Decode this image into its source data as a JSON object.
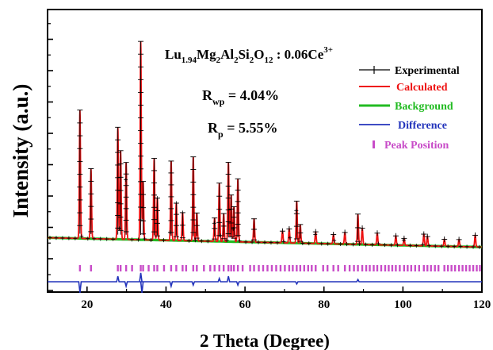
{
  "chart_data": {
    "type": "line",
    "title": "",
    "xlabel": "2 Theta (Degree)",
    "ylabel": "Intensity (a.u.)",
    "xlim": [
      10,
      120
    ],
    "ylim": [
      0,
      100
    ],
    "x_ticks": [
      20,
      40,
      60,
      80,
      100,
      120
    ],
    "y_ticks_labeled": false,
    "grid": false,
    "legend_position": "top-right",
    "annotations": {
      "formula": {
        "base1": "Lu",
        "sub1": "1.94",
        "base2": "Mg",
        "sub2": "2",
        "base3": "Al",
        "sub3": "2",
        "base4": "Si",
        "sub4": "2",
        "base5": "O",
        "sub5": "12",
        "mid": " : 0.06Ce",
        "sup": "3+"
      },
      "rwp": {
        "base": "R",
        "sub": "wp",
        "rest": " = 4.04%"
      },
      "rp": {
        "base": "R",
        "sub": "p",
        "rest": " = 5.55%"
      }
    },
    "series": [
      {
        "name": "Experimental",
        "color": "#000000",
        "marker": "plus"
      },
      {
        "name": "Calculated",
        "color": "#ee1111"
      },
      {
        "name": "Background",
        "color": "#22bb22"
      },
      {
        "name": "Difference",
        "color": "#2233bb"
      },
      {
        "name": "Peak Position",
        "color": "#c84cc8",
        "marker": "tick"
      }
    ],
    "background": {
      "start": 9,
      "end": 5
    },
    "peaks": [
      {
        "x": 18.2,
        "h": 55
      },
      {
        "x": 21.0,
        "h": 30
      },
      {
        "x": 27.8,
        "h": 48
      },
      {
        "x": 28.5,
        "h": 38
      },
      {
        "x": 29.9,
        "h": 33
      },
      {
        "x": 33.6,
        "h": 85
      },
      {
        "x": 34.2,
        "h": 25
      },
      {
        "x": 37.0,
        "h": 35
      },
      {
        "x": 37.8,
        "h": 18
      },
      {
        "x": 41.3,
        "h": 34
      },
      {
        "x": 42.6,
        "h": 16
      },
      {
        "x": 44.2,
        "h": 12
      },
      {
        "x": 46.9,
        "h": 36
      },
      {
        "x": 47.8,
        "h": 12
      },
      {
        "x": 52.3,
        "h": 10
      },
      {
        "x": 53.5,
        "h": 25
      },
      {
        "x": 54.6,
        "h": 12
      },
      {
        "x": 55.8,
        "h": 34
      },
      {
        "x": 56.5,
        "h": 20
      },
      {
        "x": 57.2,
        "h": 15
      },
      {
        "x": 58.2,
        "h": 27
      },
      {
        "x": 62.3,
        "h": 10
      },
      {
        "x": 69.5,
        "h": 5
      },
      {
        "x": 71.2,
        "h": 6
      },
      {
        "x": 73.1,
        "h": 18
      },
      {
        "x": 74.0,
        "h": 8
      },
      {
        "x": 77.9,
        "h": 5
      },
      {
        "x": 82.4,
        "h": 4
      },
      {
        "x": 85.3,
        "h": 5
      },
      {
        "x": 88.6,
        "h": 13
      },
      {
        "x": 89.7,
        "h": 7
      },
      {
        "x": 93.5,
        "h": 5
      },
      {
        "x": 98.2,
        "h": 4
      },
      {
        "x": 100.3,
        "h": 3
      },
      {
        "x": 105.3,
        "h": 5
      },
      {
        "x": 106.2,
        "h": 4
      },
      {
        "x": 110.5,
        "h": 3
      },
      {
        "x": 114.2,
        "h": 3
      },
      {
        "x": 118.3,
        "h": 5
      }
    ],
    "difference_spikes": [
      {
        "x": 18.2,
        "d": -10
      },
      {
        "x": 27.8,
        "d": 5
      },
      {
        "x": 29.9,
        "d": -4
      },
      {
        "x": 33.6,
        "d": 8
      },
      {
        "x": 33.9,
        "d": -10
      },
      {
        "x": 41.3,
        "d": -4
      },
      {
        "x": 46.9,
        "d": -3
      },
      {
        "x": 53.5,
        "d": 3
      },
      {
        "x": 55.8,
        "d": 5
      },
      {
        "x": 58.2,
        "d": -3
      },
      {
        "x": 73.1,
        "d": -2
      },
      {
        "x": 88.6,
        "d": 2
      }
    ],
    "peak_positions": [
      18.2,
      21.0,
      27.8,
      28.5,
      29.9,
      31.4,
      33.6,
      34.2,
      35.6,
      37.0,
      37.8,
      39.5,
      41.3,
      42.6,
      44.2,
      45.1,
      46.9,
      47.8,
      49.6,
      51.2,
      52.3,
      53.5,
      54.6,
      55.8,
      56.5,
      57.2,
      58.2,
      59.4,
      61.3,
      62.3,
      63.5,
      64.6,
      65.7,
      66.8,
      67.9,
      69.0,
      70.1,
      71.2,
      72.1,
      73.1,
      74.0,
      75.0,
      76.0,
      76.9,
      77.9,
      79.8,
      80.9,
      82.4,
      83.6,
      85.3,
      86.5,
      87.6,
      88.6,
      89.7,
      90.7,
      91.6,
      92.6,
      93.5,
      94.5,
      95.5,
      96.4,
      97.3,
      98.2,
      99.2,
      100.3,
      101.2,
      102.1,
      103.1,
      104.1,
      105.3,
      106.2,
      107.1,
      108.1,
      109.0,
      110.5,
      111.4,
      112.3,
      113.2,
      114.2,
      115.1,
      116.0,
      116.9,
      117.8,
      118.7,
      119.5
    ]
  }
}
